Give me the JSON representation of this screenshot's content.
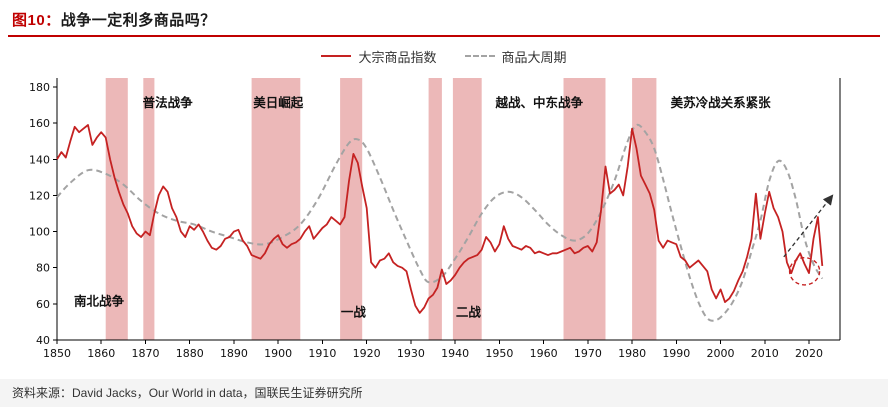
{
  "header": {
    "figure_label": "图10：",
    "title": "战争一定利多商品吗？",
    "accent_color": "#c00000"
  },
  "legend": [
    {
      "label": "大宗商品指数",
      "style": "solid",
      "color": "#c52222"
    },
    {
      "label": "商品大周期",
      "style": "dashed",
      "color": "#a3a3a3"
    }
  ],
  "source": {
    "prefix": "资料来源：",
    "text": "David Jacks，Our World in data，国联民生证券研究所"
  },
  "chart_data": {
    "type": "line",
    "title": "战争一定利多商品吗？",
    "x_axis": {
      "min": 1850,
      "max": 2027,
      "ticks": [
        1850,
        1860,
        1870,
        1880,
        1890,
        1900,
        1910,
        1920,
        1930,
        1940,
        1950,
        1960,
        1970,
        1980,
        1990,
        2000,
        2010,
        2020
      ]
    },
    "y_axis": {
      "min": 40,
      "max": 185,
      "ticks": [
        40,
        60,
        80,
        100,
        120,
        140,
        160,
        180
      ]
    },
    "band_color": "#ecb8b8",
    "war_bands": [
      {
        "start": 1861,
        "end": 1866,
        "label": "南北战争",
        "label_year": 1859.5,
        "label_value": 59
      },
      {
        "start": 1869.5,
        "end": 1872,
        "label": "普法战争",
        "label_year": 1875,
        "label_value": 169
      },
      {
        "start": 1894,
        "end": 1905,
        "label": "美日崛起",
        "label_year": 1900,
        "label_value": 169
      },
      {
        "start": 1914,
        "end": 1919,
        "label": "一战",
        "label_year": 1917,
        "label_value": 53
      },
      {
        "start": 1934,
        "end": 1937,
        "label": ""
      },
      {
        "start": 1939.5,
        "end": 1946,
        "label": "二战",
        "label_year": 1943,
        "label_value": 53
      },
      {
        "start": 1964.5,
        "end": 1974,
        "label": "越战、中东战争",
        "label_year": 1959,
        "label_value": 169
      },
      {
        "start": 1980,
        "end": 1985.5,
        "label": "美苏冷战关系紧张",
        "label_year": 2000,
        "label_value": 169
      }
    ],
    "series": [
      {
        "name": "大宗商品指数",
        "style": "solid",
        "color": "#c52222",
        "start_year": 1850,
        "values": [
          140,
          144,
          141,
          150,
          158,
          155,
          157,
          159,
          148,
          152,
          155,
          152,
          140,
          130,
          122,
          115,
          110,
          103,
          99,
          97,
          100,
          98,
          110,
          120,
          125,
          122,
          113,
          108,
          100,
          97,
          103,
          101,
          104,
          100,
          95,
          91,
          90,
          92,
          96,
          97,
          100,
          101,
          95,
          92,
          87,
          86,
          85,
          88,
          93,
          96,
          98,
          93,
          91,
          93,
          94,
          96,
          100,
          103,
          96,
          99,
          102,
          104,
          108,
          106,
          104,
          108,
          128,
          143,
          138,
          125,
          113,
          83,
          80,
          84,
          85,
          88,
          83,
          81,
          80,
          78,
          68,
          59,
          55,
          58,
          63,
          65,
          69,
          79,
          71,
          73,
          76,
          80,
          83,
          85,
          86,
          87,
          90,
          97,
          94,
          89,
          93,
          103,
          96,
          92,
          91,
          90,
          92,
          91,
          88,
          89,
          88,
          87,
          88,
          88,
          89,
          90,
          91,
          88,
          89,
          91,
          92,
          89,
          94,
          112,
          136,
          121,
          123,
          126,
          120,
          136,
          157,
          146,
          131,
          126,
          121,
          112,
          95,
          91,
          95,
          94,
          93,
          86,
          84,
          80,
          82,
          84,
          81,
          78,
          68,
          63,
          68,
          61,
          63,
          67,
          73,
          78,
          86,
          96,
          121,
          96,
          110,
          122,
          113,
          108,
          100,
          83,
          77,
          84,
          88,
          82,
          77,
          96,
          108,
          81
        ]
      },
      {
        "name": "商品大周期",
        "style": "dashed",
        "color": "#a3a3a3",
        "points": [
          [
            1850,
            119
          ],
          [
            1853,
            127
          ],
          [
            1857,
            134
          ],
          [
            1861,
            132
          ],
          [
            1865,
            126
          ],
          [
            1869,
            117
          ],
          [
            1873,
            110
          ],
          [
            1877,
            106
          ],
          [
            1881,
            104
          ],
          [
            1885,
            100
          ],
          [
            1889,
            97
          ],
          [
            1893,
            94
          ],
          [
            1897,
            93
          ],
          [
            1901,
            97
          ],
          [
            1905,
            104
          ],
          [
            1909,
            118
          ],
          [
            1913,
            137
          ],
          [
            1916,
            149
          ],
          [
            1918,
            151
          ],
          [
            1920,
            146
          ],
          [
            1923,
            130
          ],
          [
            1926,
            112
          ],
          [
            1929,
            95
          ],
          [
            1932,
            79
          ],
          [
            1934,
            72
          ],
          [
            1937,
            75
          ],
          [
            1940,
            85
          ],
          [
            1943,
            97
          ],
          [
            1946,
            110
          ],
          [
            1949,
            119
          ],
          [
            1952,
            122
          ],
          [
            1955,
            119
          ],
          [
            1958,
            112
          ],
          [
            1961,
            104
          ],
          [
            1964,
            98
          ],
          [
            1967,
            95
          ],
          [
            1970,
            99
          ],
          [
            1973,
            111
          ],
          [
            1976,
            128
          ],
          [
            1979,
            150
          ],
          [
            1981,
            159
          ],
          [
            1983,
            155
          ],
          [
            1985,
            146
          ],
          [
            1987,
            129
          ],
          [
            1989,
            110
          ],
          [
            1991,
            92
          ],
          [
            1993,
            75
          ],
          [
            1995,
            61
          ],
          [
            1997,
            52
          ],
          [
            1999,
            51
          ],
          [
            2001,
            55
          ],
          [
            2003,
            62
          ],
          [
            2005,
            73
          ],
          [
            2007,
            89
          ],
          [
            2009,
            106
          ],
          [
            2011,
            128
          ],
          [
            2013,
            139
          ],
          [
            2015,
            134
          ],
          [
            2017,
            118
          ],
          [
            2019,
            96
          ],
          [
            2021,
            82
          ],
          [
            2023,
            74
          ]
        ]
      }
    ],
    "annotations": {
      "trend_arrow": {
        "from_year": 2014.3,
        "from_value": 86,
        "to_year": 2025.3,
        "to_value": 120
      },
      "highlight_ellipse": {
        "year": 2019,
        "value": 78,
        "rx_years": 3.4,
        "ry_units": 7.5,
        "color": "#c52222"
      }
    }
  }
}
